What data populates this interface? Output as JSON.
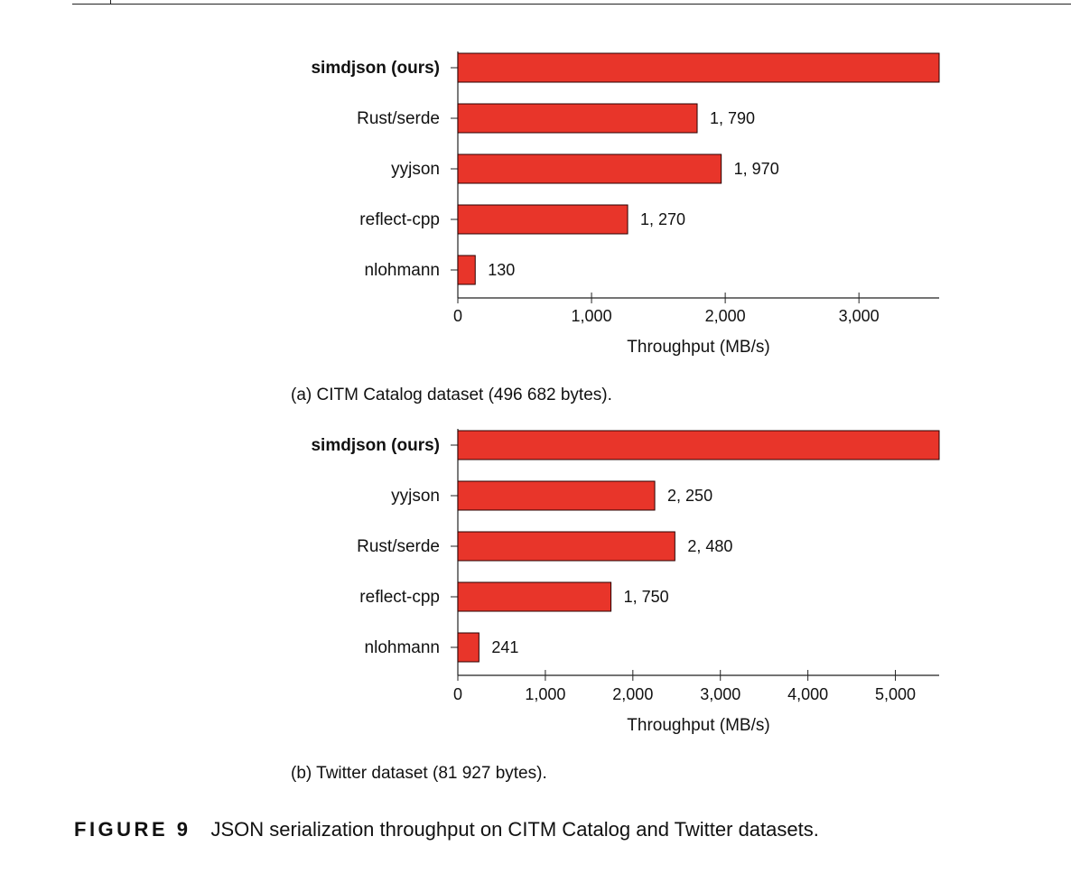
{
  "colors": {
    "bar_fill": "#e8352a",
    "bar_stroke": "#2a0000",
    "axis": "#222222"
  },
  "chart_data": [
    {
      "type": "bar",
      "orientation": "horizontal",
      "caption": "(a) CITM Catalog dataset (496 682 bytes).",
      "categories": [
        "simdjson (ours)",
        "Rust/serde",
        "yyjson",
        "reflect-cpp",
        "nlohmann"
      ],
      "values": [
        3600,
        1790,
        1970,
        1270,
        130
      ],
      "value_labels": [
        "",
        "1, 790",
        "1, 970",
        "1, 270",
        "130"
      ],
      "bold_categories": [
        "simdjson (ours)"
      ],
      "xlabel": "Throughput (MB/s)",
      "xlim": [
        0,
        3600
      ],
      "xticks": [
        0,
        1000,
        2000,
        3000
      ],
      "xtick_labels": [
        "0",
        "1,000",
        "2,000",
        "3,000"
      ],
      "grid": false
    },
    {
      "type": "bar",
      "orientation": "horizontal",
      "caption": "(b) Twitter dataset (81 927 bytes).",
      "categories": [
        "simdjson (ours)",
        "yyjson",
        "Rust/serde",
        "reflect-cpp",
        "nlohmann"
      ],
      "values": [
        5500,
        2250,
        2480,
        1750,
        241
      ],
      "value_labels": [
        "",
        "2, 250",
        "2, 480",
        "1, 750",
        "241"
      ],
      "bold_categories": [
        "simdjson (ours)"
      ],
      "xlabel": "Throughput (MB/s)",
      "xlim": [
        0,
        5500
      ],
      "xticks": [
        0,
        1000,
        2000,
        3000,
        4000,
        5000
      ],
      "xtick_labels": [
        "0",
        "1,000",
        "2,000",
        "3,000",
        "4,000",
        "5,000"
      ],
      "grid": false
    }
  ],
  "figure": {
    "label": "FIGURE 9",
    "text": "JSON serialization throughput on CITM Catalog and Twitter datasets."
  }
}
